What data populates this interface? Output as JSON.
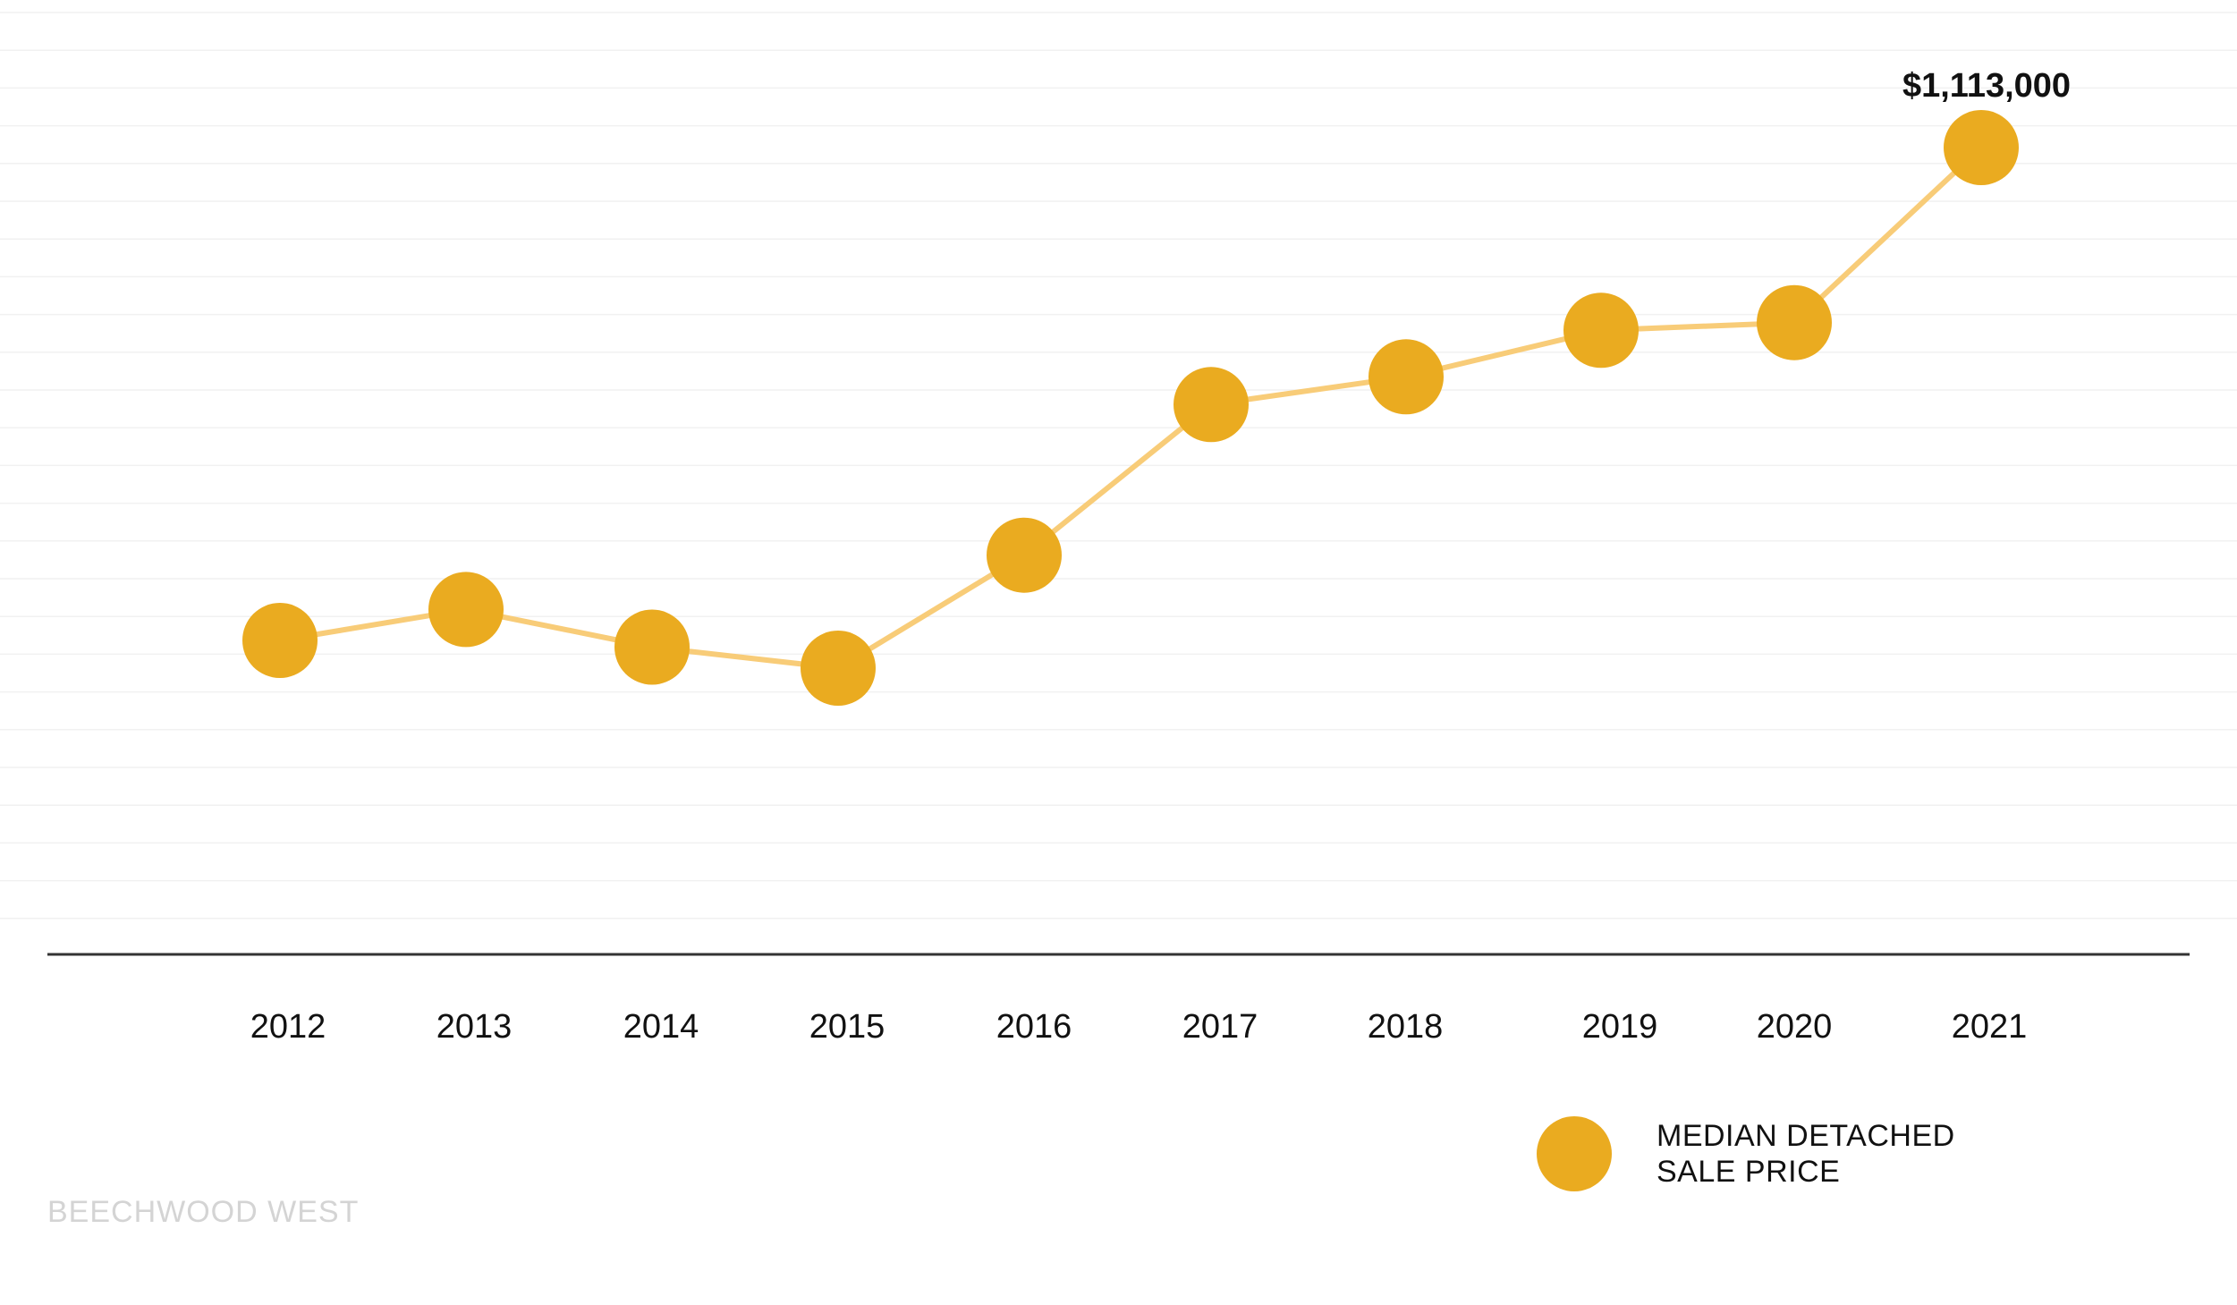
{
  "chart_data": {
    "type": "line",
    "categories": [
      "2012",
      "2013",
      "2014",
      "2015",
      "2016",
      "2017",
      "2018",
      "2019",
      "2020",
      "2021"
    ],
    "series": [
      {
        "name": "MEDIAN DETACHED SALE PRICE",
        "values": [
          668000,
          696000,
          662000,
          643000,
          745000,
          881000,
          906000,
          948000,
          955000,
          1113000
        ]
      }
    ],
    "annotations": [
      {
        "category": "2021",
        "text": "$1,113,000"
      }
    ],
    "grid": true,
    "legend_position": "bottom-right",
    "legend_lines": [
      "MEDIAN DETACHED",
      "SALE PRICE"
    ],
    "colors": {
      "marker": "#EAAB20",
      "line": "#F8CC78",
      "axis": "#333333",
      "grid": "#f1f1f1"
    }
  },
  "watermark": "BEECHWOOD WEST"
}
